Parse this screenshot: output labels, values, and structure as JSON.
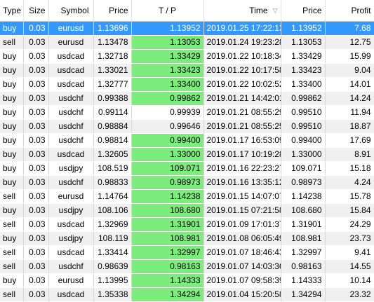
{
  "columns": {
    "type": "Type",
    "size": "Size",
    "symbol": "Symbol",
    "price": "Price",
    "tp": "T / P",
    "time": "Time",
    "open_price": "Price",
    "profit": "Profit"
  },
  "sort_indicator": "▽",
  "colors": {
    "selected_row": "#3399ff",
    "tp_hit": "#7ced7c",
    "stripe": "#f0f0f0"
  },
  "selected_row_index": 0,
  "rows": [
    {
      "type": "buy",
      "size": "0.03",
      "symbol": "eurusd",
      "price": "1.13696",
      "tp": "1.13952",
      "tp_hit": true,
      "time": "2019.01.25 17:22:13",
      "open_price": "1.13952",
      "profit": "7.68"
    },
    {
      "type": "sell",
      "size": "0.03",
      "symbol": "eurusd",
      "price": "1.13478",
      "tp": "1.13053",
      "tp_hit": true,
      "time": "2019.01.24 19:23:28",
      "open_price": "1.13053",
      "profit": "12.75"
    },
    {
      "type": "buy",
      "size": "0.03",
      "symbol": "usdcad",
      "price": "1.32718",
      "tp": "1.33429",
      "tp_hit": true,
      "time": "2019.01.22 10:18:34",
      "open_price": "1.33429",
      "profit": "15.99"
    },
    {
      "type": "buy",
      "size": "0.03",
      "symbol": "usdcad",
      "price": "1.33021",
      "tp": "1.33423",
      "tp_hit": true,
      "time": "2019.01.22 10:17:58",
      "open_price": "1.33423",
      "profit": "9.04"
    },
    {
      "type": "buy",
      "size": "0.03",
      "symbol": "usdcad",
      "price": "1.32777",
      "tp": "1.33400",
      "tp_hit": true,
      "time": "2019.01.22 10:02:52",
      "open_price": "1.33400",
      "profit": "14.01"
    },
    {
      "type": "buy",
      "size": "0.03",
      "symbol": "usdchf",
      "price": "0.99388",
      "tp": "0.99862",
      "tp_hit": true,
      "time": "2019.01.21 14:42:01",
      "open_price": "0.99862",
      "profit": "14.24"
    },
    {
      "type": "buy",
      "size": "0.03",
      "symbol": "usdchf",
      "price": "0.99114",
      "tp": "0.99939",
      "tp_hit": false,
      "time": "2019.01.21 08:55:29",
      "open_price": "0.99510",
      "profit": "11.94"
    },
    {
      "type": "buy",
      "size": "0.03",
      "symbol": "usdchf",
      "price": "0.98884",
      "tp": "0.99646",
      "tp_hit": false,
      "time": "2019.01.21 08:55:25",
      "open_price": "0.99510",
      "profit": "18.87"
    },
    {
      "type": "buy",
      "size": "0.03",
      "symbol": "usdchf",
      "price": "0.98814",
      "tp": "0.99400",
      "tp_hit": true,
      "time": "2019.01.17 16:53:09",
      "open_price": "0.99400",
      "profit": "17.69"
    },
    {
      "type": "buy",
      "size": "0.03",
      "symbol": "usdcad",
      "price": "1.32605",
      "tp": "1.33000",
      "tp_hit": true,
      "time": "2019.01.17 10:19:28",
      "open_price": "1.33000",
      "profit": "8.91"
    },
    {
      "type": "buy",
      "size": "0.03",
      "symbol": "usdjpy",
      "price": "108.519",
      "tp": "109.071",
      "tp_hit": true,
      "time": "2019.01.16 22:23:27",
      "open_price": "109.071",
      "profit": "15.18"
    },
    {
      "type": "buy",
      "size": "0.03",
      "symbol": "usdchf",
      "price": "0.98833",
      "tp": "0.98973",
      "tp_hit": true,
      "time": "2019.01.16 13:35:12",
      "open_price": "0.98973",
      "profit": "4.24"
    },
    {
      "type": "sell",
      "size": "0.03",
      "symbol": "eurusd",
      "price": "1.14764",
      "tp": "1.14238",
      "tp_hit": true,
      "time": "2019.01.15 14:07:07",
      "open_price": "1.14238",
      "profit": "15.78"
    },
    {
      "type": "buy",
      "size": "0.03",
      "symbol": "usdjpy",
      "price": "108.106",
      "tp": "108.680",
      "tp_hit": true,
      "time": "2019.01.15 07:21:58",
      "open_price": "108.680",
      "profit": "15.84"
    },
    {
      "type": "sell",
      "size": "0.03",
      "symbol": "usdcad",
      "price": "1.32969",
      "tp": "1.31901",
      "tp_hit": true,
      "time": "2019.01.09 17:01:37",
      "open_price": "1.31901",
      "profit": "24.29"
    },
    {
      "type": "buy",
      "size": "0.03",
      "symbol": "usdjpy",
      "price": "108.119",
      "tp": "108.981",
      "tp_hit": true,
      "time": "2019.01.08 06:05:49",
      "open_price": "108.981",
      "profit": "23.73"
    },
    {
      "type": "sell",
      "size": "0.03",
      "symbol": "usdcad",
      "price": "1.33414",
      "tp": "1.32997",
      "tp_hit": true,
      "time": "2019.01.07 18:46:43",
      "open_price": "1.32997",
      "profit": "9.41"
    },
    {
      "type": "sell",
      "size": "0.03",
      "symbol": "usdchf",
      "price": "0.98639",
      "tp": "0.98163",
      "tp_hit": true,
      "time": "2019.01.07 14:03:36",
      "open_price": "0.98163",
      "profit": "14.55"
    },
    {
      "type": "buy",
      "size": "0.03",
      "symbol": "eurusd",
      "price": "1.13995",
      "tp": "1.14333",
      "tp_hit": true,
      "time": "2019.01.07 09:58:39",
      "open_price": "1.14333",
      "profit": "10.14"
    },
    {
      "type": "sell",
      "size": "0.03",
      "symbol": "usdcad",
      "price": "1.35338",
      "tp": "1.34294",
      "tp_hit": true,
      "time": "2019.01.04 15:20:58",
      "open_price": "1.34294",
      "profit": "23.32"
    }
  ]
}
